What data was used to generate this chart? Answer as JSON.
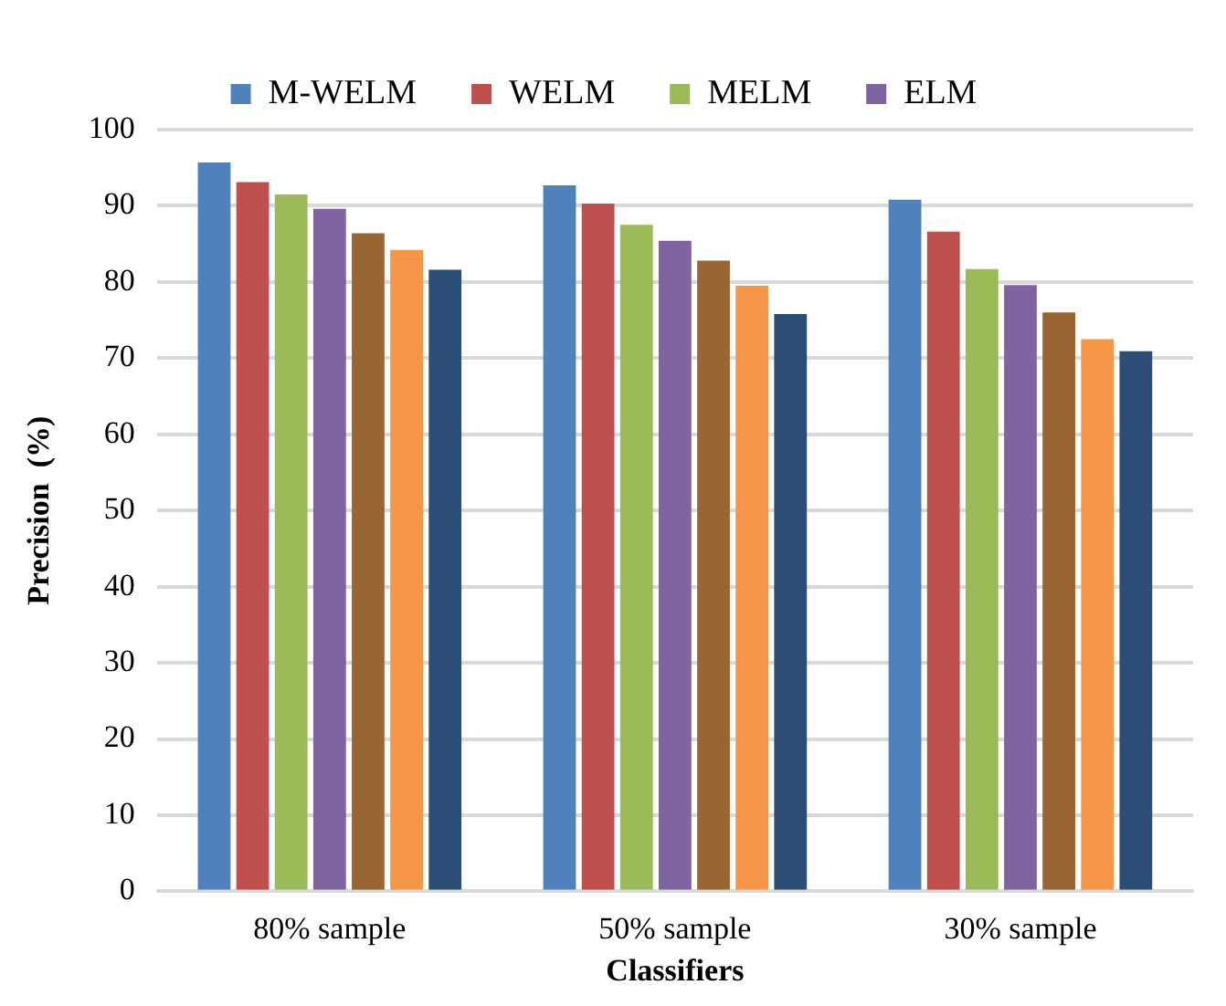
{
  "chart_data": {
    "type": "bar",
    "xlabel": "Classifiers",
    "ylabel": "Precision  (%)",
    "categories": [
      "80% sample",
      "50% sample",
      "30% sample"
    ],
    "series": [
      {
        "name": "M-WELM",
        "color": "#4f81bd",
        "values": [
          95.7,
          92.7,
          90.8
        ]
      },
      {
        "name": "WELM",
        "color": "#c0504d",
        "values": [
          93.1,
          90.3,
          86.6
        ]
      },
      {
        "name": "MELM",
        "color": "#9bbb59",
        "values": [
          91.5,
          87.5,
          81.7
        ]
      },
      {
        "name": "ELM",
        "color": "#8064a2",
        "values": [
          89.6,
          85.4,
          79.6
        ]
      },
      {
        "color": "#996633",
        "values": [
          86.4,
          82.8,
          76.0
        ]
      },
      {
        "color": "#f79646",
        "values": [
          84.2,
          79.5,
          72.5
        ]
      },
      {
        "color": "#2c4d75",
        "values": [
          81.6,
          75.8,
          70.9
        ]
      }
    ],
    "ylim": [
      0,
      100
    ],
    "yticks": [
      0,
      10,
      20,
      30,
      40,
      50,
      60,
      70,
      80,
      90,
      100
    ],
    "grid": "y",
    "legend": "top"
  }
}
